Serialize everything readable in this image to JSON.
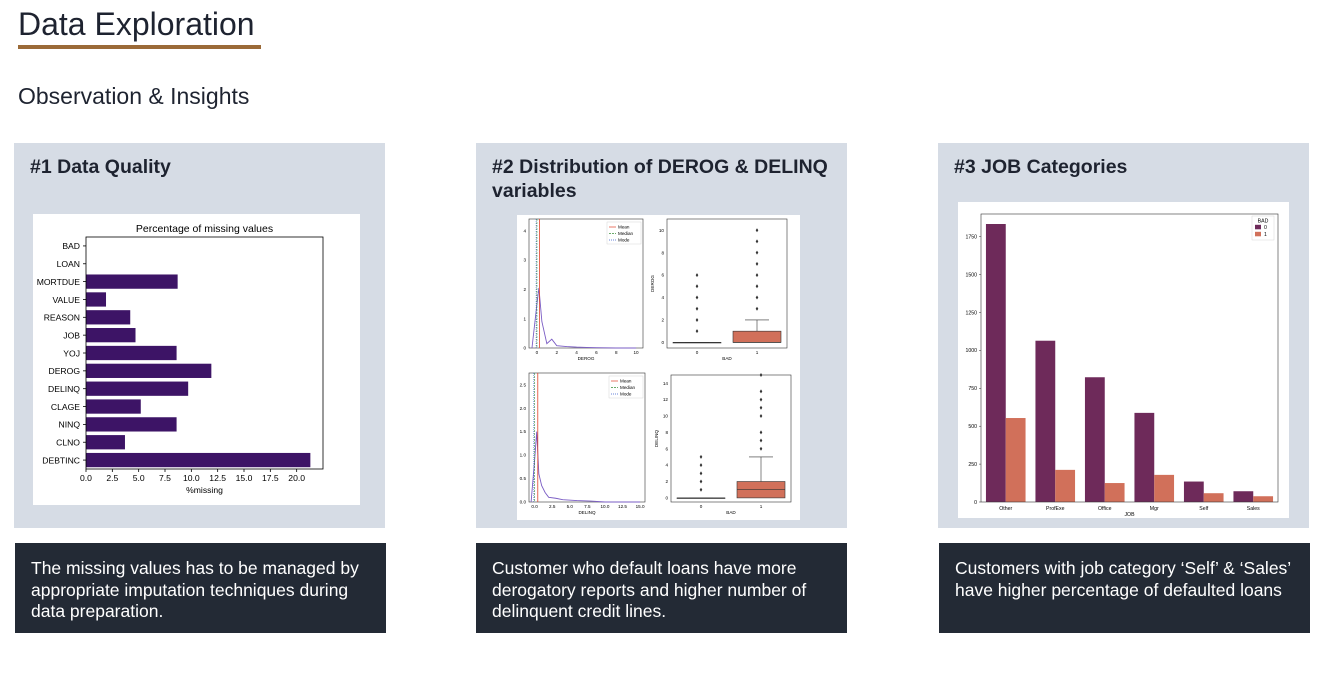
{
  "page": {
    "title": "Data Exploration",
    "subtitle": "Observation & Insights"
  },
  "colors": {
    "accent": "#9b6a38",
    "panel_bg": "#d6dce5",
    "note_bg": "#232a35",
    "bar_purple": "#3d1466",
    "bad0": "#6e2a5a",
    "bad1": "#d1705a"
  },
  "panels": [
    {
      "heading": "#1 Data Quality",
      "note": "The missing values has to be managed by appropriate imputation techniques during data preparation."
    },
    {
      "heading": "#2 Distribution of DEROG & DELINQ variables",
      "note": "Customer who default loans have more derogatory reports and higher number of delinquent credit lines."
    },
    {
      "heading": "#3 JOB Categories",
      "note": "Customers with job category ‘Self’ & ‘Sales’ have higher percentage of defaulted loans"
    }
  ],
  "chart_data": [
    {
      "type": "bar",
      "orientation": "horizontal",
      "title": "Percentage of missing values",
      "xlabel": "%missing",
      "ylabel": "",
      "categories": [
        "BAD",
        "LOAN",
        "MORTDUE",
        "VALUE",
        "REASON",
        "JOB",
        "YOJ",
        "DEROG",
        "DELINQ",
        "CLAGE",
        "NINQ",
        "CLNO",
        "DEBTINC"
      ],
      "values": [
        0,
        0,
        8.7,
        1.9,
        4.2,
        4.7,
        8.6,
        11.9,
        9.7,
        5.2,
        8.6,
        3.7,
        21.3
      ],
      "xlim": [
        0,
        22.5
      ],
      "xticks": [
        "0.0",
        "2.5",
        "5.0",
        "7.5",
        "10.0",
        "12.5",
        "15.0",
        "17.5",
        "20.0"
      ]
    },
    {
      "type": "line",
      "subtype": "kde",
      "xlabel": "DEROG",
      "ylabel": "",
      "legend": [
        "Mean",
        "Median",
        "Mode"
      ],
      "xticks": [
        "0",
        "2",
        "4",
        "6",
        "8",
        "10"
      ],
      "yticks": [
        "0",
        "1",
        "2",
        "3",
        "4"
      ],
      "x": [
        -0.5,
        0,
        0.2,
        0.5,
        1,
        1.5,
        2,
        3,
        4,
        5,
        6,
        8,
        10
      ],
      "series": [
        {
          "values": [
            0,
            1.5,
            2.05,
            0.9,
            0.15,
            0.3,
            0.08,
            0.05,
            0.03,
            0.02,
            0.01,
            0,
            0
          ]
        }
      ],
      "mean": 0.25,
      "median": 0,
      "mode": 0
    },
    {
      "type": "box",
      "xlabel": "BAD",
      "ylabel": "DEROG",
      "categories": [
        "0",
        "1"
      ],
      "yticks": [
        "0",
        "2",
        "4",
        "6",
        "8",
        "10"
      ],
      "boxes": [
        {
          "q1": 0,
          "median": 0,
          "q3": 0,
          "whisker_low": 0,
          "whisker_high": 0,
          "outliers": [
            1,
            2,
            3,
            4,
            5,
            6
          ]
        },
        {
          "q1": 0,
          "median": 0,
          "q3": 1,
          "whisker_low": 0,
          "whisker_high": 2,
          "outliers": [
            3,
            4,
            5,
            6,
            7,
            8,
            9,
            10
          ]
        }
      ]
    },
    {
      "type": "line",
      "subtype": "kde",
      "xlabel": "DELINQ",
      "ylabel": "",
      "legend": [
        "Mean",
        "Median",
        "Mode"
      ],
      "xticks": [
        "0.0",
        "2.5",
        "5.0",
        "7.5",
        "10.0",
        "12.5",
        "15.0"
      ],
      "yticks": [
        "0.0",
        "0.5",
        "1.0",
        "1.5",
        "2.0",
        "2.5"
      ],
      "x": [
        -0.5,
        0,
        0.3,
        0.6,
        1,
        1.5,
        2,
        3,
        4,
        6,
        8,
        10,
        15
      ],
      "series": [
        {
          "values": [
            0,
            0.9,
            1.5,
            0.6,
            0.35,
            0.2,
            0.1,
            0.08,
            0.05,
            0.03,
            0.02,
            0,
            0
          ]
        }
      ],
      "mean": 0.45,
      "median": 0,
      "mode": 0
    },
    {
      "type": "box",
      "xlabel": "BAD",
      "ylabel": "DELINQ",
      "categories": [
        "0",
        "1"
      ],
      "yticks": [
        "0",
        "2",
        "4",
        "6",
        "8",
        "10",
        "12",
        "14"
      ],
      "boxes": [
        {
          "q1": 0,
          "median": 0,
          "q3": 0,
          "whisker_low": 0,
          "whisker_high": 0,
          "outliers": [
            1,
            2,
            3,
            4,
            5
          ]
        },
        {
          "q1": 0,
          "median": 1,
          "q3": 2,
          "whisker_low": 0,
          "whisker_high": 5,
          "outliers": [
            6,
            7,
            8,
            10,
            11,
            12,
            13,
            15
          ]
        }
      ]
    },
    {
      "type": "bar",
      "orientation": "vertical",
      "xlabel": "JOB",
      "ylabel": "",
      "legend_title": "BAD",
      "categories": [
        "Other",
        "ProfExe",
        "Office",
        "Mgr",
        "Self",
        "Sales"
      ],
      "series": [
        {
          "name": "0",
          "values": [
            1834,
            1064,
            823,
            588,
            135,
            71
          ]
        },
        {
          "name": "1",
          "values": [
            554,
            212,
            125,
            179,
            58,
            38
          ]
        }
      ],
      "ylim": [
        0,
        1900
      ],
      "yticks": [
        "0",
        "250",
        "500",
        "750",
        "1000",
        "1250",
        "1500",
        "1750"
      ]
    }
  ]
}
